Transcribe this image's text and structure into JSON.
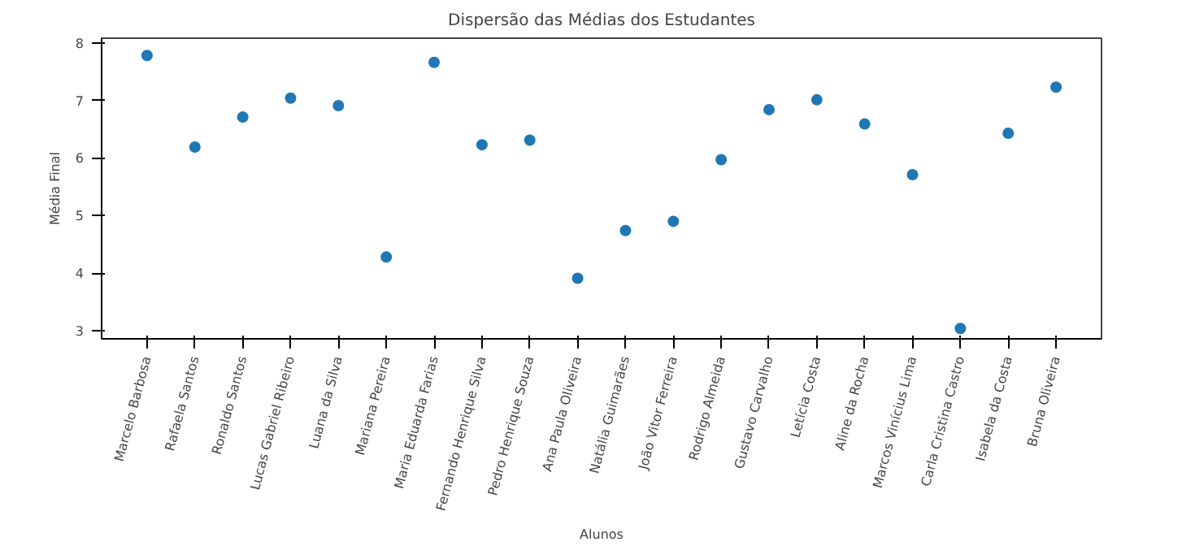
{
  "chart_data": {
    "type": "scatter",
    "title": "Dispersão das Médias dos Estudantes",
    "xlabel": "Alunos",
    "ylabel": "Média Final",
    "categories": [
      "Marcelo Barbosa",
      "Rafaela Santos",
      "Ronaldo Santos",
      "Lucas Gabriel Ribeiro",
      "Luana da Silva",
      "Mariana Pereira",
      "Maria Eduarda Farias",
      "Fernando Henrique Silva",
      "Pedro Henrique Souza",
      "Ana Paula Oliveira",
      "Natália Guimarães",
      "João Vitor Ferreira",
      "Rodrigo Almeida",
      "Gustavo Carvalho",
      "Letícia Costa",
      "Aline da Rocha",
      "Marcos Vinícius Lima",
      "Carla Cristina Castro",
      "Isabela da Costa",
      "Bruna Oliveira"
    ],
    "series": [
      {
        "color": "#1f77b4",
        "values": [
          7.78,
          6.19,
          6.71,
          7.04,
          6.91,
          4.28,
          7.66,
          6.23,
          6.31,
          3.91,
          4.74,
          4.9,
          5.97,
          6.84,
          7.01,
          6.59,
          5.71,
          3.04,
          6.43,
          7.23
        ]
      }
    ],
    "ylim": [
      2.86,
      8.08
    ],
    "yticks": [
      3,
      4,
      5,
      6,
      7,
      8
    ],
    "marker": "circle",
    "grid": false
  }
}
